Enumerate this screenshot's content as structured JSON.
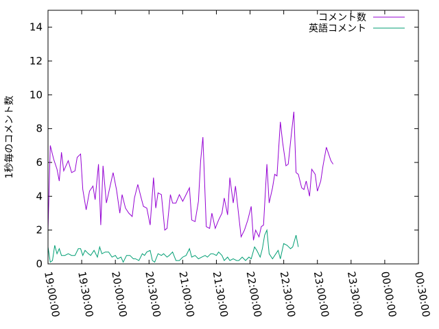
{
  "chart_data": {
    "type": "line",
    "ylabel": "1秒毎のコメント数",
    "xlabel": "",
    "title": "",
    "ylim": [
      0,
      15
    ],
    "yticks": [
      0,
      2,
      4,
      6,
      8,
      10,
      12,
      14
    ],
    "xlim": [
      "19:00:00",
      "00:30:00"
    ],
    "xticks": [
      "19:00:00",
      "19:30:00",
      "20:00:00",
      "20:30:00",
      "21:00:00",
      "21:30:00",
      "22:00:00",
      "22:30:00",
      "23:00:00",
      "23:30:00",
      "00:00:00",
      "00:30:00"
    ],
    "grid": false,
    "legend_position": "top-right",
    "series": [
      {
        "name": "コメント数",
        "color": "#9400d3",
        "values": [
          [
            "19:00:00",
            2.0
          ],
          [
            "19:02:00",
            7.0
          ],
          [
            "19:05:00",
            6.2
          ],
          [
            "19:08:00",
            5.6
          ],
          [
            "19:10:00",
            4.9
          ],
          [
            "19:12:00",
            6.6
          ],
          [
            "19:14:00",
            5.5
          ],
          [
            "19:18:00",
            6.1
          ],
          [
            "19:21:00",
            5.4
          ],
          [
            "19:24:00",
            5.5
          ],
          [
            "19:26:00",
            6.3
          ],
          [
            "19:29:00",
            6.5
          ],
          [
            "19:31:00",
            4.4
          ],
          [
            "19:34:00",
            3.2
          ],
          [
            "19:37:00",
            4.3
          ],
          [
            "19:40:00",
            4.6
          ],
          [
            "19:42:00",
            3.8
          ],
          [
            "19:45:00",
            5.9
          ],
          [
            "19:47:00",
            2.3
          ],
          [
            "19:49:00",
            5.8
          ],
          [
            "19:52:00",
            3.6
          ],
          [
            "19:55:00",
            4.5
          ],
          [
            "19:58:00",
            5.4
          ],
          [
            "20:01:00",
            4.4
          ],
          [
            "20:04:00",
            3.0
          ],
          [
            "20:06:00",
            4.1
          ],
          [
            "20:09:00",
            3.3
          ],
          [
            "20:12:00",
            3.0
          ],
          [
            "20:15:00",
            2.8
          ],
          [
            "20:17:00",
            3.9
          ],
          [
            "20:20:00",
            4.7
          ],
          [
            "20:23:00",
            3.9
          ],
          [
            "20:25:00",
            3.4
          ],
          [
            "20:28:00",
            3.3
          ],
          [
            "20:31:00",
            2.3
          ],
          [
            "20:34:00",
            5.1
          ],
          [
            "20:36:00",
            3.3
          ],
          [
            "20:38:00",
            4.2
          ],
          [
            "20:41:00",
            4.1
          ],
          [
            "20:44:00",
            2.0
          ],
          [
            "20:46:00",
            2.1
          ],
          [
            "20:49:00",
            4.1
          ],
          [
            "20:51:00",
            3.6
          ],
          [
            "20:54:00",
            3.6
          ],
          [
            "20:57:00",
            4.1
          ],
          [
            "21:00:00",
            3.7
          ],
          [
            "21:03:00",
            4.1
          ],
          [
            "21:06:00",
            4.5
          ],
          [
            "21:08:00",
            2.6
          ],
          [
            "21:11:00",
            2.5
          ],
          [
            "21:14:00",
            3.7
          ],
          [
            "21:16:00",
            6.1
          ],
          [
            "21:18:00",
            7.5
          ],
          [
            "21:21:00",
            2.2
          ],
          [
            "21:24:00",
            2.1
          ],
          [
            "21:26:00",
            3.0
          ],
          [
            "21:29:00",
            2.1
          ],
          [
            "21:32:00",
            2.6
          ],
          [
            "21:35:00",
            3.0
          ],
          [
            "21:37:00",
            3.9
          ],
          [
            "21:40:00",
            2.9
          ],
          [
            "21:42:00",
            5.1
          ],
          [
            "21:45:00",
            3.6
          ],
          [
            "21:47:00",
            4.6
          ],
          [
            "21:50:00",
            2.8
          ],
          [
            "21:52:00",
            1.6
          ],
          [
            "21:55:00",
            2.0
          ],
          [
            "21:58:00",
            2.6
          ],
          [
            "22:01:00",
            3.4
          ],
          [
            "22:03:00",
            1.4
          ],
          [
            "22:05:00",
            2.0
          ],
          [
            "22:08:00",
            1.6
          ],
          [
            "22:10:00",
            2.2
          ],
          [
            "22:12:00",
            2.3
          ],
          [
            "22:15:00",
            5.9
          ],
          [
            "22:17:00",
            3.6
          ],
          [
            "22:20:00",
            4.5
          ],
          [
            "22:22:00",
            5.3
          ],
          [
            "22:24:00",
            5.2
          ],
          [
            "22:27:00",
            8.4
          ],
          [
            "22:29:00",
            7.2
          ],
          [
            "22:32:00",
            5.8
          ],
          [
            "22:34:00",
            5.9
          ],
          [
            "22:37:00",
            7.8
          ],
          [
            "22:39:00",
            9.0
          ],
          [
            "22:41:00",
            5.4
          ],
          [
            "22:43:00",
            5.3
          ],
          [
            "22:46:00",
            4.5
          ],
          [
            "22:48:00",
            4.4
          ],
          [
            "22:50:00",
            4.9
          ],
          [
            "22:53:00",
            4.0
          ],
          [
            "22:55:00",
            5.6
          ],
          [
            "22:58:00",
            5.3
          ],
          [
            "23:00:00",
            4.3
          ],
          [
            "23:03:00",
            4.9
          ],
          [
            "23:05:00",
            5.8
          ],
          [
            "23:08:00",
            6.9
          ],
          [
            "23:10:00",
            6.5
          ],
          [
            "23:12:00",
            6.1
          ],
          [
            "23:14:00",
            5.9
          ]
        ]
      },
      {
        "name": "英語コメント",
        "color": "#009e73",
        "values": [
          [
            "19:00:00",
            1.0
          ],
          [
            "19:02:00",
            0.1
          ],
          [
            "19:04:00",
            0.2
          ],
          [
            "19:06:00",
            1.1
          ],
          [
            "19:08:00",
            0.6
          ],
          [
            "19:10:00",
            0.9
          ],
          [
            "19:12:00",
            0.5
          ],
          [
            "19:15:00",
            0.5
          ],
          [
            "19:18:00",
            0.6
          ],
          [
            "19:21:00",
            0.5
          ],
          [
            "19:24:00",
            0.5
          ],
          [
            "19:27:00",
            0.9
          ],
          [
            "19:29:00",
            0.9
          ],
          [
            "19:31:00",
            0.5
          ],
          [
            "19:33:00",
            0.8
          ],
          [
            "19:36:00",
            0.6
          ],
          [
            "19:38:00",
            0.5
          ],
          [
            "19:41:00",
            0.8
          ],
          [
            "19:44:00",
            0.4
          ],
          [
            "19:46:00",
            1.0
          ],
          [
            "19:48:00",
            0.6
          ],
          [
            "19:51:00",
            0.7
          ],
          [
            "19:54:00",
            0.7
          ],
          [
            "19:57:00",
            0.4
          ],
          [
            "20:00:00",
            0.5
          ],
          [
            "20:02:00",
            0.3
          ],
          [
            "20:05:00",
            0.4
          ],
          [
            "20:07:00",
            0.1
          ],
          [
            "20:10:00",
            0.5
          ],
          [
            "20:13:00",
            0.5
          ],
          [
            "20:16:00",
            0.3
          ],
          [
            "20:18:00",
            0.3
          ],
          [
            "20:21:00",
            0.2
          ],
          [
            "20:24:00",
            0.6
          ],
          [
            "20:26:00",
            0.5
          ],
          [
            "20:28:00",
            0.7
          ],
          [
            "20:31:00",
            0.8
          ],
          [
            "20:33:00",
            0.2
          ],
          [
            "20:35:00",
            0.1
          ],
          [
            "20:38:00",
            0.6
          ],
          [
            "20:41:00",
            0.5
          ],
          [
            "20:43:00",
            0.6
          ],
          [
            "20:46:00",
            0.4
          ],
          [
            "20:48:00",
            0.5
          ],
          [
            "20:51:00",
            0.7
          ],
          [
            "20:54:00",
            0.2
          ],
          [
            "20:57:00",
            0.2
          ],
          [
            "21:00:00",
            0.4
          ],
          [
            "21:03:00",
            0.5
          ],
          [
            "21:06:00",
            0.9
          ],
          [
            "21:08:00",
            0.4
          ],
          [
            "21:11:00",
            0.5
          ],
          [
            "21:14:00",
            0.3
          ],
          [
            "21:17:00",
            0.4
          ],
          [
            "21:20:00",
            0.5
          ],
          [
            "21:22:00",
            0.4
          ],
          [
            "21:25:00",
            0.6
          ],
          [
            "21:27:00",
            0.6
          ],
          [
            "21:30:00",
            0.5
          ],
          [
            "21:32:00",
            0.7
          ],
          [
            "21:35:00",
            0.5
          ],
          [
            "21:37:00",
            0.2
          ],
          [
            "21:40:00",
            0.4
          ],
          [
            "21:42:00",
            0.2
          ],
          [
            "21:45:00",
            0.3
          ],
          [
            "21:48:00",
            0.2
          ],
          [
            "21:50:00",
            0.2
          ],
          [
            "21:53:00",
            0.4
          ],
          [
            "21:56:00",
            0.2
          ],
          [
            "21:59:00",
            0.4
          ],
          [
            "22:01:00",
            0.3
          ],
          [
            "22:04:00",
            1.0
          ],
          [
            "22:06:00",
            0.8
          ],
          [
            "22:09:00",
            0.4
          ],
          [
            "22:11:00",
            0.9
          ],
          [
            "22:13:00",
            1.7
          ],
          [
            "22:15:00",
            2.0
          ],
          [
            "22:17:00",
            0.6
          ],
          [
            "22:20:00",
            0.3
          ],
          [
            "22:23:00",
            0.6
          ],
          [
            "22:25:00",
            0.8
          ],
          [
            "22:27:00",
            0.3
          ],
          [
            "22:30:00",
            1.2
          ],
          [
            "22:33:00",
            1.1
          ],
          [
            "22:36:00",
            0.9
          ],
          [
            "22:38:00",
            1.0
          ],
          [
            "22:41:00",
            1.7
          ],
          [
            "22:43:00",
            1.0
          ]
        ]
      }
    ]
  }
}
